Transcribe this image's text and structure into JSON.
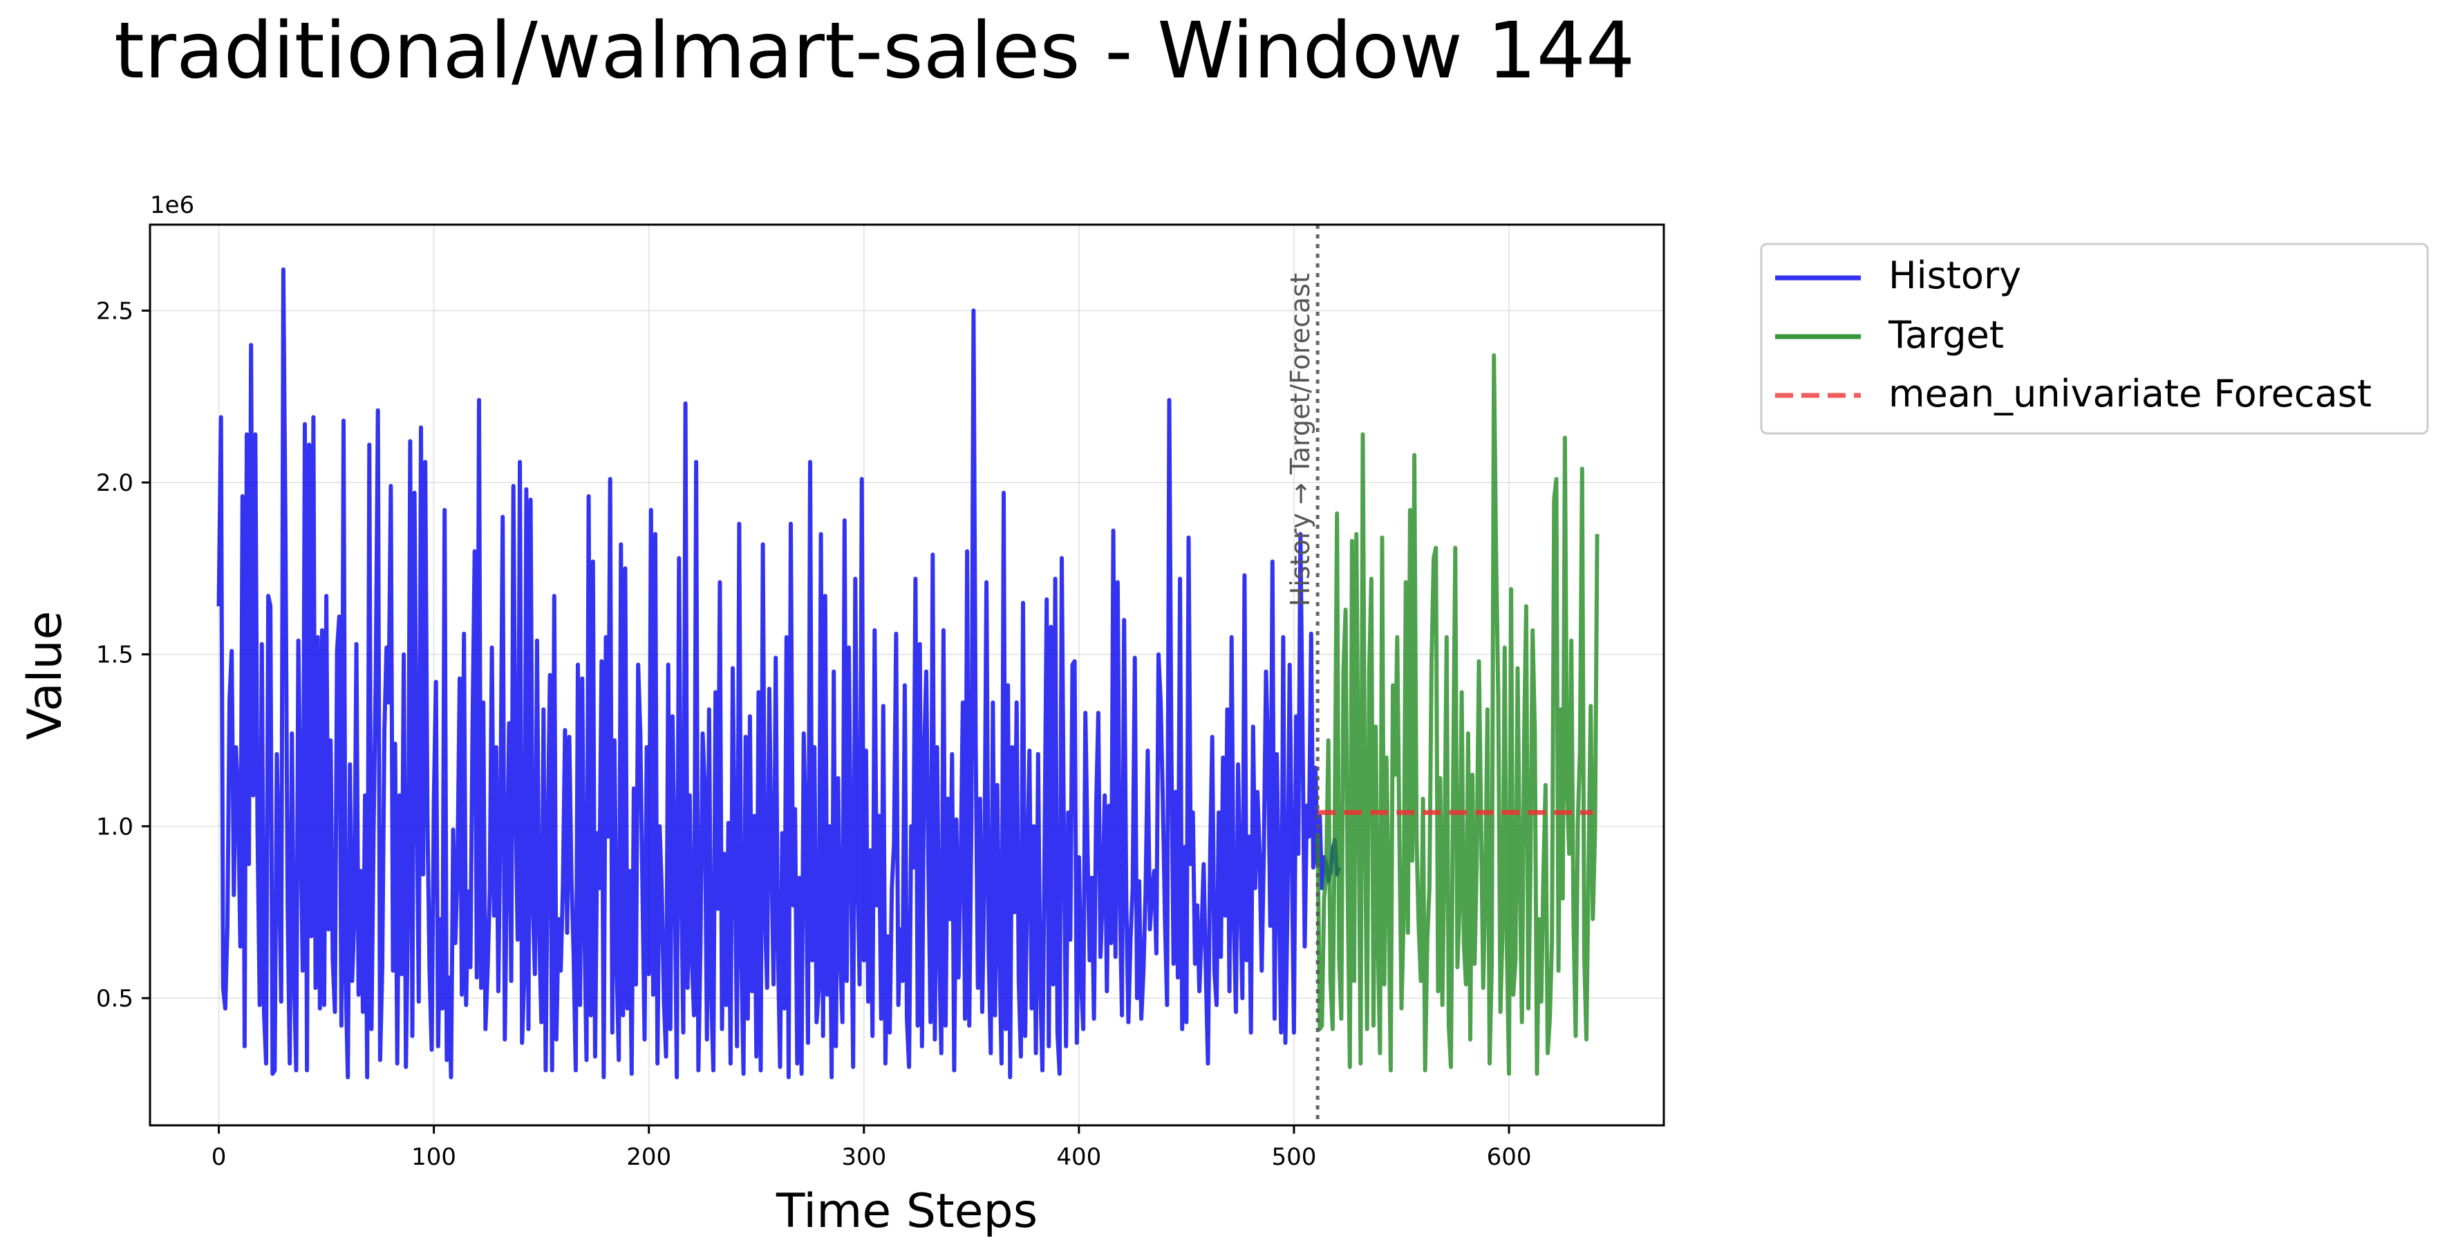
{
  "chart_data": {
    "type": "line",
    "title": "traditional/walmart-sales - Window 144",
    "xlabel": "Time Steps",
    "ylabel": "Value",
    "y_scale_label": "1e6",
    "xlim": [
      -32,
      672
    ],
    "ylim": [
      0.13,
      2.75
    ],
    "x_ticks": [
      0,
      100,
      200,
      300,
      400,
      500,
      600
    ],
    "x_tick_labels": [
      "0",
      "100",
      "200",
      "300",
      "400",
      "500",
      "600"
    ],
    "y_ticks": [
      0.5,
      1.0,
      1.5,
      2.0,
      2.5
    ],
    "y_tick_labels": [
      "0.5",
      "1.0",
      "1.5",
      "2.0",
      "2.5"
    ],
    "grid": true,
    "legend_position": "outside-top-right",
    "divider": {
      "x": 511,
      "label": "History → Target/Forecast",
      "color": "#555555"
    },
    "series": [
      {
        "name": "History",
        "color": "#0000ee",
        "style": "solid",
        "x_start": 0,
        "values": [
          1.64,
          2.19,
          0.53,
          0.47,
          0.71,
          1.37,
          1.51,
          0.8,
          1.23,
          1.08,
          0.65,
          1.96,
          0.36,
          2.14,
          0.89,
          2.4,
          1.09,
          2.14,
          1.0,
          0.48,
          1.53,
          0.46,
          0.31,
          1.67,
          1.64,
          0.28,
          0.29,
          1.21,
          0.87,
          0.49,
          2.62,
          1.85,
          0.77,
          0.31,
          1.27,
          0.56,
          0.29,
          1.54,
          1.0,
          0.58,
          2.17,
          0.29,
          2.11,
          0.68,
          2.19,
          0.53,
          1.55,
          0.47,
          1.57,
          0.48,
          1.67,
          0.7,
          1.25,
          0.61,
          0.46,
          1.51,
          1.61,
          0.42,
          2.18,
          0.55,
          0.27,
          1.18,
          0.55,
          0.73,
          1.53,
          0.51,
          0.87,
          0.46,
          1.09,
          0.27,
          2.11,
          0.41,
          0.99,
          1.44,
          2.21,
          0.32,
          0.59,
          1.28,
          1.52,
          1.36,
          1.99,
          0.58,
          1.24,
          0.31,
          1.09,
          0.57,
          1.5,
          0.3,
          0.76,
          2.12,
          0.39,
          1.97,
          1.16,
          0.49,
          2.16,
          0.86,
          2.06,
          1.04,
          0.58,
          0.35,
          1.07,
          1.42,
          0.36,
          0.73,
          0.47,
          1.92,
          0.32,
          0.56,
          0.27,
          0.99,
          0.66,
          0.87,
          1.43,
          0.51,
          1.56,
          0.48,
          0.81,
          0.59,
          1.29,
          1.8,
          0.56,
          2.24,
          0.53,
          1.36,
          0.41,
          0.58,
          0.81,
          1.52,
          0.74,
          1.23,
          0.52,
          1.07,
          1.9,
          0.38,
          0.88,
          1.3,
          0.55,
          1.99,
          1.08,
          0.67,
          2.06,
          0.37,
          0.55,
          1.98,
          0.41,
          1.95,
          0.78,
          0.57,
          1.54,
          0.69,
          0.43,
          1.34,
          0.29,
          0.98,
          1.44,
          0.29,
          1.67,
          0.38,
          0.73,
          0.58,
          0.82,
          1.28,
          0.69,
          1.26,
          0.85,
          0.63,
          0.29,
          1.47,
          0.48,
          1.43,
          0.72,
          0.32,
          1.96,
          0.45,
          1.77,
          0.33,
          0.98,
          0.82,
          1.48,
          0.27,
          1.55,
          0.97,
          2.01,
          0.4,
          1.25,
          0.61,
          0.32,
          1.82,
          0.45,
          1.75,
          0.47,
          0.87,
          0.28,
          1.11,
          0.54,
          1.47,
          1.27,
          0.82,
          0.38,
          1.23,
          0.57,
          1.92,
          0.51,
          1.85,
          0.31,
          1.0,
          0.81,
          0.49,
          0.33,
          1.47,
          0.41,
          1.32,
          0.89,
          0.27,
          1.78,
          0.85,
          0.4,
          2.23,
          0.53,
          1.09,
          0.61,
          0.45,
          2.06,
          0.29,
          0.66,
          1.27,
          1.11,
          0.38,
          1.34,
          0.51,
          0.29,
          1.39,
          0.76,
          1.71,
          0.41,
          0.92,
          0.48,
          1.01,
          0.31,
          1.46,
          0.92,
          0.36,
          1.88,
          0.62,
          0.28,
          1.26,
          0.44,
          1.32,
          0.52,
          1.03,
          0.33,
          1.39,
          0.29,
          1.82,
          0.74,
          0.53,
          1.4,
          0.92,
          0.54,
          1.49,
          0.65,
          0.3,
          0.98,
          0.47,
          1.55,
          0.27,
          1.88,
          0.77,
          1.05,
          0.31,
          0.85,
          0.28,
          1.27,
          0.97,
          0.37,
          2.06,
          0.61,
          1.23,
          0.43,
          0.53,
          1.85,
          0.39,
          1.67,
          0.51,
          1.0,
          0.27,
          1.45,
          0.36,
          1.14,
          0.62,
          0.43,
          1.89,
          0.55,
          1.52,
          0.9,
          0.3,
          1.72,
          0.86,
          0.54,
          2.01,
          0.61,
          1.22,
          0.49,
          0.93,
          0.39,
          1.57,
          0.77,
          1.03,
          0.44,
          1.35,
          0.31,
          0.68,
          0.4,
          0.82,
          0.95,
          1.56,
          0.48,
          0.7,
          0.55,
          1.41,
          0.44,
          0.3,
          1.0,
          0.88,
          1.72,
          0.42,
          1.53,
          0.36,
          1.21,
          1.45,
          0.88,
          0.43,
          1.79,
          0.38,
          1.23,
          0.64,
          0.34,
          1.57,
          0.42,
          1.08,
          0.73,
          1.21,
          0.29,
          1.02,
          0.56,
          0.89,
          1.36,
          0.44,
          1.8,
          0.42,
          1.03,
          2.5,
          1.24,
          0.53,
          1.08,
          0.46,
          0.84,
          1.71,
          0.64,
          0.34,
          1.36,
          0.45,
          1.12,
          0.64,
          0.31,
          1.97,
          0.41,
          1.41,
          0.27,
          1.23,
          0.75,
          1.36,
          0.55,
          0.33,
          1.65,
          0.39,
          0.87,
          1.22,
          0.47,
          1.0,
          0.34,
          1.21,
          0.54,
          0.29,
          0.92,
          1.66,
          0.36,
          1.58,
          0.54,
          1.72,
          0.4,
          0.28,
          1.78,
          0.96,
          0.36,
          1.04,
          0.67,
          1.47,
          1.48,
          0.37,
          0.91,
          0.55,
          0.41,
          1.33,
          0.93,
          0.61,
          0.85,
          0.44,
          1.06,
          1.33,
          0.62,
          0.8,
          1.09,
          0.52,
          1.06,
          0.66,
          1.86,
          0.62,
          1.71,
          0.79,
          0.45,
          1.6,
          0.79,
          0.43,
          0.67,
          0.82,
          1.49,
          0.5,
          0.84,
          0.44,
          0.58,
          0.81,
          1.22,
          0.7,
          0.81,
          0.87,
          0.63,
          1.5,
          1.36,
          1.08,
          0.73,
          0.48,
          2.24,
          1.22,
          0.6,
          1.1,
          0.56,
          1.72,
          0.41,
          0.94,
          0.43,
          1.84,
          0.89,
          1.04,
          0.6,
          0.77,
          0.52,
          0.69,
          0.89,
          0.58,
          0.31,
          0.9,
          1.26,
          0.58,
          0.48,
          1.04,
          0.62,
          1.2,
          0.74,
          1.34,
          0.52,
          1.55,
          0.73,
          0.46,
          1.18,
          0.81,
          0.5,
          1.73,
          0.61,
          0.97,
          0.4,
          1.29,
          0.82,
          1.1,
          0.92,
          0.58,
          0.93,
          1.45,
          1.2,
          0.71,
          1.77,
          0.44,
          1.21,
          0.81,
          0.4,
          1.55,
          0.37,
          0.77,
          1.47,
          0.92,
          0.4,
          1.32,
          0.92,
          1.85,
          1.27,
          0.65,
          1.06,
          0.97,
          1.56,
          0.88,
          1.17,
          0.89,
          1.03,
          0.82,
          0.91,
          0.89,
          0.84,
          0.87,
          0.93,
          0.96,
          0.86,
          0.88
        ]
      },
      {
        "name": "Target",
        "color": "#228b22",
        "style": "solid",
        "x_start": 511,
        "values": [
          0.98,
          0.41,
          0.42,
          0.79,
          0.86,
          1.25,
          0.55,
          0.41,
          1.03,
          1.91,
          0.62,
          0.44,
          1.45,
          1.63,
          0.81,
          0.3,
          1.83,
          0.55,
          1.85,
          1.09,
          0.31,
          2.14,
          1.06,
          0.41,
          1.45,
          1.72,
          0.42,
          1.29,
          0.67,
          0.34,
          1.84,
          0.54,
          1.2,
          0.82,
          0.29,
          1.41,
          1.15,
          1.55,
          0.98,
          0.47,
          0.74,
          1.71,
          0.69,
          1.92,
          0.9,
          2.08,
          0.96,
          0.71,
          0.55,
          1.08,
          0.29,
          0.67,
          0.82,
          1.48,
          1.78,
          1.81,
          0.52,
          1.14,
          0.48,
          0.92,
          1.55,
          0.42,
          0.3,
          1.11,
          1.81,
          0.59,
          0.77,
          1.39,
          0.66,
          0.54,
          1.27,
          0.38,
          1.15,
          0.6,
          0.91,
          1.48,
          1.02,
          0.53,
          0.83,
          1.34,
          0.31,
          0.6,
          2.37,
          1.78,
          1.38,
          0.46,
          0.7,
          1.52,
          0.66,
          0.28,
          1.69,
          0.51,
          0.61,
          1.46,
          0.86,
          0.43,
          1.24,
          1.64,
          0.47,
          0.88,
          1.57,
          1.27,
          0.28,
          0.73,
          0.49,
          0.86,
          1.12,
          0.34,
          0.44,
          0.67,
          1.95,
          2.01,
          0.58,
          1.34,
          0.79,
          2.13,
          1.11,
          0.92,
          1.54,
          0.73,
          0.39,
          1.01,
          1.22,
          2.04,
          0.62,
          0.38,
          0.88,
          1.35,
          0.73,
          0.99,
          1.85
        ]
      },
      {
        "name": "mean_univariate Forecast",
        "color": "#ee3333",
        "style": "dashed",
        "x_start": 511,
        "x_end": 639,
        "constant": 1.04
      }
    ]
  }
}
